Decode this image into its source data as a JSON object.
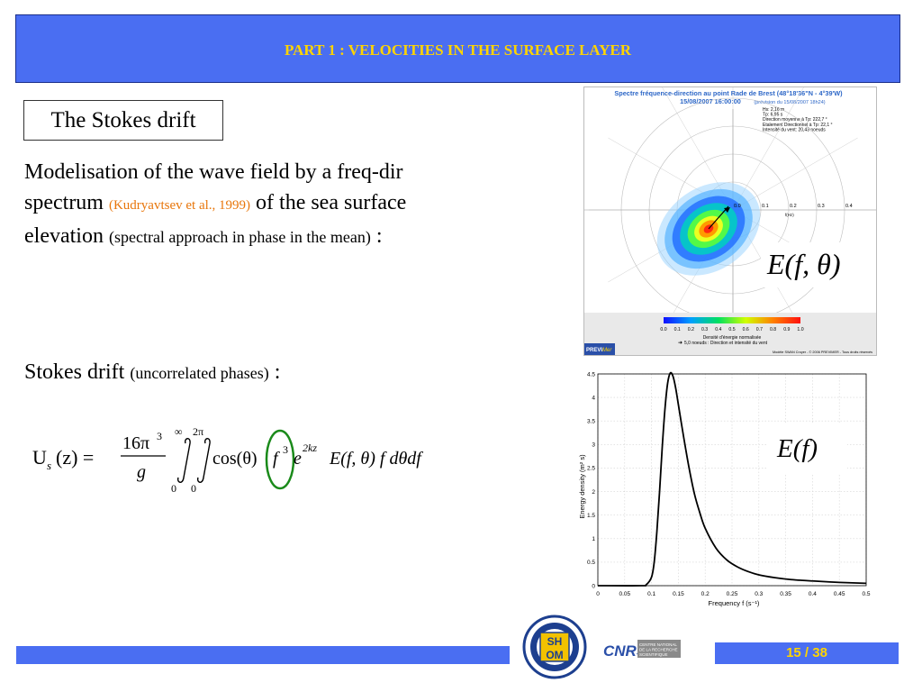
{
  "header": {
    "title": "PART 1 : VELOCITIES IN THE SURFACE LAYER"
  },
  "section": {
    "title": "The Stokes drift"
  },
  "paragraph1": {
    "line1": "Modelisation of the wave field by a freq-dir",
    "line2_a": "spectrum ",
    "line2_ref": "(Kudryavtsev et al., 1999)",
    "line2_b": " of the sea surface",
    "line3_a": "elevation ",
    "line3_small": "(spectral approach in phase in the mean)",
    "line3_b": " :"
  },
  "paragraph2": {
    "text_a": "Stokes drift ",
    "text_small": "(uncorrelated phases)",
    "text_b": " :"
  },
  "formula": {
    "lhs": "U",
    "lhs_sub": "s",
    "lhs_arg": "(z) =",
    "frac_num": "16π",
    "frac_num_exp": "3",
    "frac_den": "g",
    "int1_upper": "∞",
    "int1_lower": "0",
    "int2_upper": "2π",
    "int2_lower": "0",
    "cos_term": "cos(θ)",
    "f_term": "f",
    "f_exp": "3",
    "e_term": "e",
    "e_exp": "2kz",
    "tail": "E(f, θ) f dθdf"
  },
  "polar_panel": {
    "title1": "Spectre fréquence-direction au point Rade de Brest (48°18'36\"N - 4°39'W)",
    "title2": "15/08/2007 16:00:00",
    "title2_note": "(prévision du 15/08/2007 18h24)",
    "info": [
      "Hs: 2,16 m",
      "Tp: 6,95 s",
      "Direction moyenne à Tp: 222,7 °",
      "Etalement Directionnel à Tp: 22,1 °",
      "Intensité du vent: 20,43 noeuds"
    ],
    "ring_labels": [
      "0.0",
      "0.1",
      "0.2",
      "0.3",
      "0.4"
    ],
    "axis_unit": "f(Hz)",
    "label": "E(f, θ)",
    "colorbar_ticks": [
      "0.0",
      "0.1",
      "0.2",
      "0.3",
      "0.4",
      "0.5",
      "0.6",
      "0.7",
      "0.8",
      "0.9",
      "1.0"
    ],
    "colorbar_title": "Densité d'énergie normalisée",
    "legend_arrow": "5,0 noeuds : Direction et intensité du vent",
    "brand": "PREVI",
    "brand2": "Mer",
    "credit": "Modèle SWAN Croyer - © 2006 PREVIMER - Tous droits réservés"
  },
  "chart_data": {
    "type": "line",
    "title": "",
    "label": "E(f)",
    "xlabel": "Frequency f (s⁻¹)",
    "ylabel": "Energy density (m² s)",
    "xlim": [
      0,
      0.5
    ],
    "ylim": [
      0,
      4.5
    ],
    "x_ticks": [
      "0",
      "0.05",
      "0.1",
      "0.15",
      "0.2",
      "0.25",
      "0.3",
      "0.35",
      "0.4",
      "0.45",
      "0.5"
    ],
    "y_ticks": [
      "0",
      "0.5",
      "1",
      "1.5",
      "2",
      "2.5",
      "3",
      "3.5",
      "4",
      "4.5"
    ],
    "grid": true,
    "series": [
      {
        "x": [
          0,
          0.08,
          0.09,
          0.1,
          0.105,
          0.11,
          0.115,
          0.12,
          0.125,
          0.13,
          0.135,
          0.14,
          0.145,
          0.15,
          0.16,
          0.17,
          0.18,
          0.19,
          0.2,
          0.22,
          0.24,
          0.26,
          0.28,
          0.3,
          0.33,
          0.36,
          0.4,
          0.45,
          0.5
        ],
        "y": [
          0,
          0,
          0.02,
          0.18,
          0.5,
          1.15,
          2.0,
          2.95,
          3.75,
          4.3,
          4.52,
          4.45,
          4.2,
          3.85,
          3.15,
          2.5,
          1.95,
          1.55,
          1.22,
          0.8,
          0.55,
          0.4,
          0.3,
          0.23,
          0.17,
          0.13,
          0.1,
          0.07,
          0.05
        ]
      }
    ]
  },
  "footer": {
    "page": "15 / 38"
  },
  "logos": {
    "shom": [
      "SH",
      "OM"
    ],
    "cnrs": "CNRS",
    "cnrs_text": [
      "CENTRE NATIONAL",
      "DE LA RECHERCHE",
      "SCIENTIFIQUE"
    ]
  }
}
